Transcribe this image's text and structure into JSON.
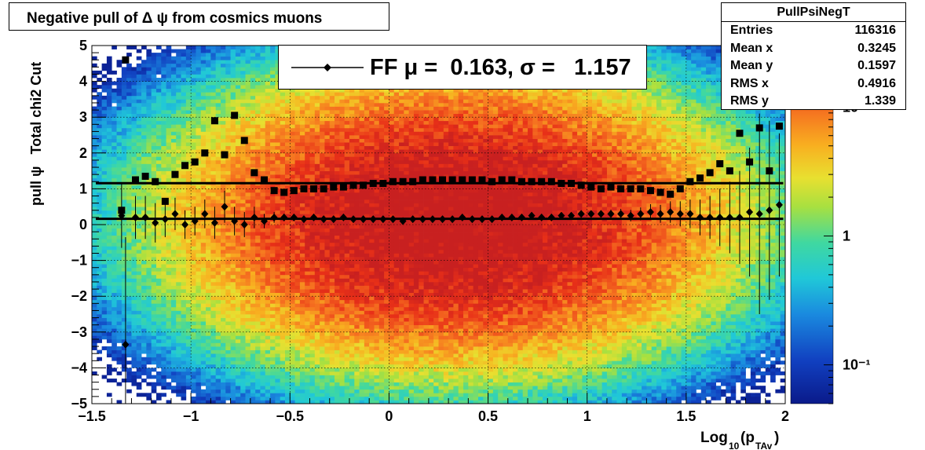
{
  "title": "Negative pull of Δ ψ from cosmics muons",
  "stats": {
    "name": "PullPsiNegT",
    "rows": [
      {
        "label": "Entries",
        "value": "116316"
      },
      {
        "label": "Mean x",
        "value": "0.3245"
      },
      {
        "label": "Mean y",
        "value": "0.1597"
      },
      {
        "label": "RMS x",
        "value": "0.4916"
      },
      {
        "label": "RMS y",
        "value": "1.339"
      }
    ]
  },
  "legend": {
    "text": "FF μ =  0.163, σ =   1.157"
  },
  "chart_data": {
    "type": "heatmap",
    "xlabel": "Log₁₀(p_TAv)",
    "ylabel": "pull ψ   Total chi2 Cut",
    "xlim": [
      -1.5,
      2
    ],
    "ylim": [
      -5,
      5
    ],
    "x_ticks": [
      "−1.5",
      "−1",
      "−0.5",
      "0",
      "0.5",
      "1",
      "1.5",
      "2"
    ],
    "y_ticks": [
      "−5",
      "−4",
      "−3",
      "−2",
      "−1",
      "0",
      "1",
      "2",
      "3",
      "4",
      "5"
    ],
    "grid": true,
    "colorbar": {
      "scale": "log",
      "min": 0.05,
      "max": 30,
      "ticks": [
        "10⁻¹",
        "1",
        "10"
      ]
    },
    "density": {
      "mean_x": 0.3245,
      "mean_y": 0.1597,
      "rms_x": 0.4916,
      "rms_y": 1.339,
      "entries": 116316
    },
    "series": [
      {
        "name": "mean",
        "marker": "diamond",
        "x": [
          -1.35,
          -1.33,
          -1.28,
          -1.23,
          -1.18,
          -1.13,
          -1.08,
          -1.03,
          -0.98,
          -0.93,
          -0.88,
          -0.83,
          -0.78,
          -0.73,
          -0.68,
          -0.63,
          -0.58,
          -0.53,
          -0.48,
          -0.43,
          -0.38,
          -0.33,
          -0.28,
          -0.23,
          -0.18,
          -0.13,
          -0.08,
          -0.03,
          0.02,
          0.07,
          0.12,
          0.17,
          0.22,
          0.27,
          0.32,
          0.37,
          0.42,
          0.47,
          0.52,
          0.57,
          0.62,
          0.67,
          0.72,
          0.77,
          0.82,
          0.87,
          0.92,
          0.97,
          1.02,
          1.07,
          1.12,
          1.17,
          1.22,
          1.27,
          1.32,
          1.37,
          1.42,
          1.47,
          1.52,
          1.57,
          1.62,
          1.67,
          1.72,
          1.77,
          1.82,
          1.87,
          1.92,
          1.97
        ],
        "y": [
          0.25,
          -3.35,
          0.2,
          0.2,
          0.05,
          0.15,
          0.3,
          0.0,
          0.1,
          0.3,
          0.05,
          0.5,
          0.1,
          0.0,
          0.2,
          0.1,
          0.2,
          0.2,
          0.2,
          0.15,
          0.2,
          0.15,
          0.15,
          0.2,
          0.15,
          0.15,
          0.15,
          0.15,
          0.15,
          0.1,
          0.15,
          0.15,
          0.15,
          0.15,
          0.15,
          0.2,
          0.15,
          0.15,
          0.15,
          0.2,
          0.2,
          0.2,
          0.25,
          0.2,
          0.2,
          0.25,
          0.25,
          0.3,
          0.3,
          0.3,
          0.3,
          0.3,
          0.25,
          0.3,
          0.35,
          0.3,
          0.35,
          0.3,
          0.3,
          0.2,
          0.2,
          0.2,
          0.2,
          0.2,
          0.35,
          0.3,
          0.4,
          0.55
        ],
        "yerr": [
          0.9,
          3.0,
          0.6,
          0.6,
          0.55,
          0.5,
          0.45,
          0.4,
          0.4,
          0.4,
          0.45,
          0.45,
          0.4,
          0.35,
          0.3,
          0.2,
          0.15,
          0.1,
          0.08,
          0.07,
          0.06,
          0.05,
          0.05,
          0.05,
          0.05,
          0.04,
          0.04,
          0.04,
          0.04,
          0.04,
          0.04,
          0.04,
          0.04,
          0.04,
          0.04,
          0.04,
          0.04,
          0.04,
          0.05,
          0.05,
          0.05,
          0.05,
          0.05,
          0.06,
          0.06,
          0.07,
          0.07,
          0.08,
          0.08,
          0.1,
          0.12,
          0.14,
          0.16,
          0.18,
          0.22,
          0.25,
          0.3,
          0.35,
          0.4,
          0.5,
          0.6,
          0.8,
          1.0,
          1.3,
          1.8,
          2.8,
          2.5,
          2.0
        ]
      },
      {
        "name": "sigma",
        "marker": "square",
        "x": [
          -1.35,
          -1.33,
          -1.28,
          -1.23,
          -1.18,
          -1.13,
          -1.08,
          -1.03,
          -0.98,
          -0.93,
          -0.88,
          -0.83,
          -0.78,
          -0.73,
          -0.68,
          -0.63,
          -0.58,
          -0.53,
          -0.48,
          -0.43,
          -0.38,
          -0.33,
          -0.28,
          -0.23,
          -0.18,
          -0.13,
          -0.08,
          -0.03,
          0.02,
          0.07,
          0.12,
          0.17,
          0.22,
          0.27,
          0.32,
          0.37,
          0.42,
          0.47,
          0.52,
          0.57,
          0.62,
          0.67,
          0.72,
          0.77,
          0.82,
          0.87,
          0.92,
          0.97,
          1.02,
          1.07,
          1.12,
          1.17,
          1.22,
          1.27,
          1.32,
          1.37,
          1.42,
          1.47,
          1.52,
          1.57,
          1.62,
          1.67,
          1.72,
          1.77,
          1.82,
          1.87,
          1.92,
          1.97
        ],
        "y": [
          0.4,
          4.6,
          1.25,
          1.35,
          1.2,
          0.65,
          1.4,
          1.65,
          1.75,
          2.0,
          2.9,
          1.95,
          3.05,
          2.35,
          1.45,
          1.25,
          0.95,
          0.9,
          0.95,
          1.0,
          1.0,
          1.0,
          1.05,
          1.05,
          1.1,
          1.1,
          1.15,
          1.15,
          1.2,
          1.2,
          1.2,
          1.25,
          1.25,
          1.25,
          1.25,
          1.25,
          1.25,
          1.25,
          1.2,
          1.25,
          1.25,
          1.2,
          1.2,
          1.2,
          1.2,
          1.15,
          1.15,
          1.1,
          1.05,
          1.0,
          1.05,
          1.0,
          1.0,
          1.0,
          0.95,
          0.9,
          0.85,
          1.0,
          1.2,
          1.3,
          1.45,
          1.7,
          1.5,
          2.55,
          1.75,
          2.7,
          1.5,
          2.75
        ]
      }
    ],
    "fit_lines": [
      {
        "series": "mean",
        "y": 0.163
      },
      {
        "series": "sigma",
        "y": 1.157
      }
    ]
  }
}
